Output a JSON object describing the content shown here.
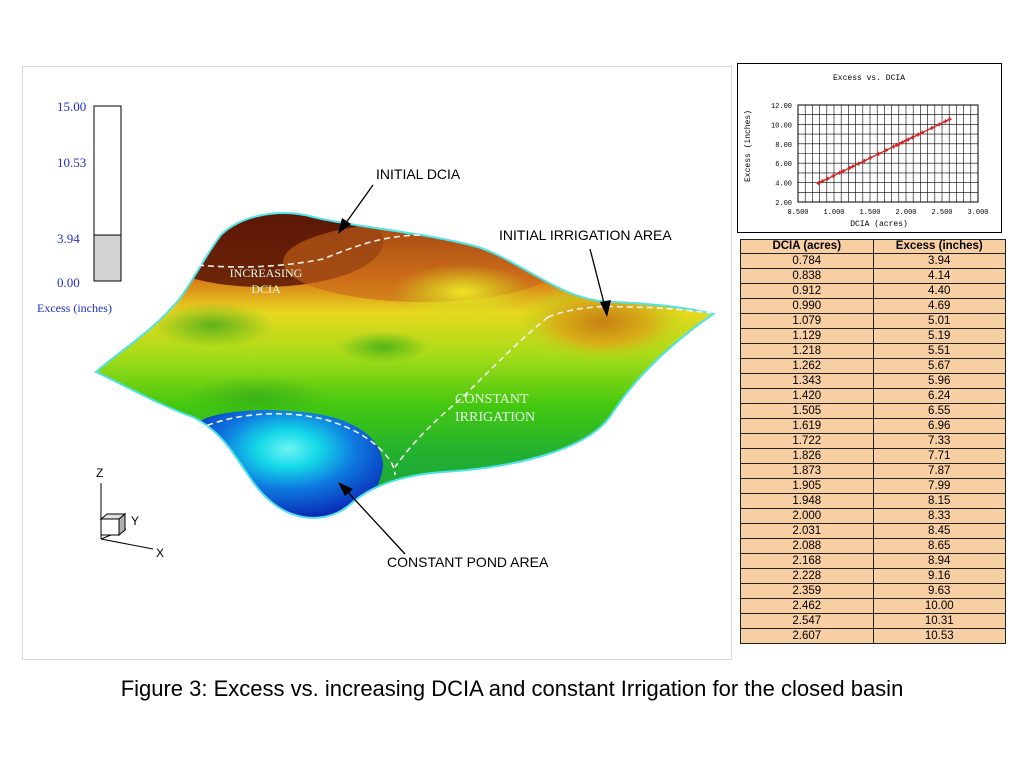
{
  "caption": "Figure 3: Excess vs. increasing DCIA and constant Irrigation for the closed basin",
  "colorbar": {
    "max_label": "15.00",
    "mid_label": "10.53",
    "value_label": "3.94",
    "min_label": "0.00",
    "title": "Excess (inches)",
    "level_fraction": 0.2627,
    "fill_color": "#d3d3d3",
    "label_color": "#1f2fc8"
  },
  "surface": {
    "annotations": {
      "initial_dcia": "INITIAL DCIA",
      "initial_irrigation_area": "INITIAL IRRIGATION AREA",
      "constant_pond_area": "CONSTANT POND AREA",
      "increasing_dcia_line1": "INCREASING",
      "increasing_dcia_line2": "DCIA",
      "constant_irrigation_line1": "CONSTANT",
      "constant_irrigation_line2": "IRRIGATION"
    },
    "axes": {
      "z": "Z",
      "y": "Y",
      "x": "X"
    },
    "colors": {
      "edge": "#4fe3e8",
      "dashed_line": "#f2f2f2",
      "region_label": "#e8fbe8"
    }
  },
  "chart_data": {
    "type": "scatter",
    "title": "Excess vs. DCIA",
    "xlabel": "DCIA (acres)",
    "ylabel": "Excess (inches)",
    "xlim": [
      0.5,
      3.0
    ],
    "ylim": [
      2.0,
      12.0
    ],
    "x_ticks": [
      "0.500",
      "1.000",
      "1.500",
      "2.000",
      "2.500",
      "3.000"
    ],
    "y_ticks": [
      "2.00",
      "4.00",
      "6.00",
      "8.00",
      "10.00",
      "12.00"
    ],
    "grid": true,
    "series_color": "#d42020",
    "x": [
      0.784,
      0.838,
      0.912,
      0.99,
      1.079,
      1.129,
      1.218,
      1.262,
      1.343,
      1.42,
      1.505,
      1.619,
      1.722,
      1.826,
      1.873,
      1.905,
      1.948,
      2.0,
      2.031,
      2.088,
      2.168,
      2.228,
      2.359,
      2.462,
      2.547,
      2.607
    ],
    "y": [
      3.94,
      4.14,
      4.4,
      4.69,
      5.01,
      5.19,
      5.51,
      5.67,
      5.96,
      6.24,
      6.55,
      6.96,
      7.33,
      7.71,
      7.87,
      7.99,
      8.15,
      8.33,
      8.45,
      8.65,
      8.94,
      9.16,
      9.63,
      10.0,
      10.31,
      10.53
    ]
  },
  "table": {
    "headers": [
      "DCIA (acres)",
      "Excess (inches)"
    ],
    "rows": [
      [
        "0.784",
        "3.94"
      ],
      [
        "0.838",
        "4.14"
      ],
      [
        "0.912",
        "4.40"
      ],
      [
        "0.990",
        "4.69"
      ],
      [
        "1.079",
        "5.01"
      ],
      [
        "1.129",
        "5.19"
      ],
      [
        "1.218",
        "5.51"
      ],
      [
        "1.262",
        "5.67"
      ],
      [
        "1.343",
        "5.96"
      ],
      [
        "1.420",
        "6.24"
      ],
      [
        "1.505",
        "6.55"
      ],
      [
        "1.619",
        "6.96"
      ],
      [
        "1.722",
        "7.33"
      ],
      [
        "1.826",
        "7.71"
      ],
      [
        "1.873",
        "7.87"
      ],
      [
        "1.905",
        "7.99"
      ],
      [
        "1.948",
        "8.15"
      ],
      [
        "2.000",
        "8.33"
      ],
      [
        "2.031",
        "8.45"
      ],
      [
        "2.088",
        "8.65"
      ],
      [
        "2.168",
        "8.94"
      ],
      [
        "2.228",
        "9.16"
      ],
      [
        "2.359",
        "9.63"
      ],
      [
        "2.462",
        "10.00"
      ],
      [
        "2.547",
        "10.31"
      ],
      [
        "2.607",
        "10.53"
      ]
    ],
    "background": "#f8cfa3"
  }
}
